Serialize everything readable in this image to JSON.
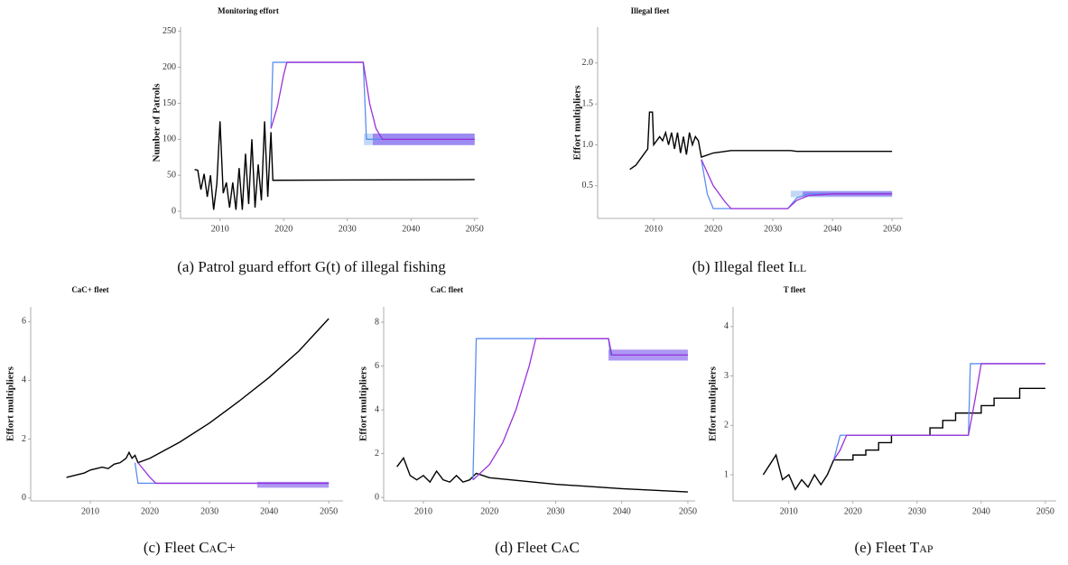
{
  "chart_data": [
    {
      "type": "line",
      "title": "Monitoring effort",
      "ylabel": "Number of Patrols",
      "caption": "(a) Patrol guard effort G(t) of illegal fishing",
      "xlim": [
        2003.8,
        2050.6
      ],
      "ylim": [
        -10,
        256
      ],
      "xticks": [
        2010,
        2020,
        2030,
        2040,
        2050
      ],
      "yticks": [
        0,
        50,
        100,
        150,
        200,
        250
      ],
      "bands": [
        {
          "color": "#a9c8f2",
          "x": [
            2032.6,
            2050
          ],
          "lower": [
            92,
            92
          ],
          "upper": [
            108,
            108
          ]
        },
        {
          "color": "#8b6cf0",
          "x": [
            2034,
            2050
          ],
          "lower": [
            92,
            92
          ],
          "upper": [
            108,
            108
          ]
        }
      ],
      "series": [
        {
          "color": "#000000",
          "x": [
            2006,
            2006.5,
            2007,
            2007.5,
            2008,
            2008.5,
            2009,
            2009.5,
            2010,
            2010.5,
            2011,
            2011.5,
            2012,
            2012.5,
            2013,
            2013.5,
            2014,
            2014.5,
            2015,
            2015.5,
            2016,
            2016.5,
            2017,
            2017.5,
            2018,
            2018.3,
            2050
          ],
          "values": [
            58,
            57,
            30,
            52,
            20,
            50,
            2,
            38,
            125,
            25,
            40,
            5,
            40,
            2,
            60,
            2,
            80,
            10,
            100,
            5,
            65,
            15,
            125,
            20,
            110,
            43,
            44
          ]
        },
        {
          "color": "#5b8def",
          "x": [
            2018,
            2018.3,
            2032.5,
            2033,
            2050
          ],
          "values": [
            115,
            207,
            207,
            100,
            100
          ]
        },
        {
          "color": "#9b30d9",
          "x": [
            2018,
            2019,
            2020,
            2020.5,
            2032.5,
            2033.5,
            2034.5,
            2035.5,
            2050
          ],
          "values": [
            115,
            145,
            190,
            207,
            207,
            150,
            115,
            100,
            100
          ]
        }
      ]
    },
    {
      "type": "line",
      "title": "Illegal fleet",
      "ylabel": "Effort multipliers",
      "caption": "(b) Illegal fleet",
      "caption_sc": "Ill",
      "xlim": [
        2000.6,
        2051.8
      ],
      "ylim": [
        0.1,
        2.44
      ],
      "xticks": [
        2010,
        2020,
        2030,
        2040,
        2050
      ],
      "yticks": [
        0.5,
        {
          "value": 1,
          "label": "1.0"
        },
        1.5,
        {
          "value": 2,
          "label": "2.0"
        }
      ],
      "bands": [
        {
          "color": "#a9c8f2",
          "x": [
            2033,
            2050
          ],
          "lower": [
            0.36,
            0.36
          ],
          "upper": [
            0.44,
            0.44
          ]
        },
        {
          "color": "#8b6cf0",
          "x": [
            2035,
            2050
          ],
          "lower": [
            0.37,
            0.37
          ],
          "upper": [
            0.43,
            0.43
          ]
        }
      ],
      "series": [
        {
          "color": "#000000",
          "x": [
            2006,
            2007,
            2008,
            2009,
            2009.3,
            2009.8,
            2010,
            2011,
            2011.5,
            2012,
            2012.5,
            2013,
            2013.5,
            2014,
            2014.5,
            2015,
            2015.5,
            2016,
            2016.5,
            2017,
            2017.5,
            2018,
            2020,
            2023,
            2033,
            2034,
            2050
          ],
          "values": [
            0.7,
            0.75,
            0.85,
            0.95,
            1.4,
            1.4,
            1.0,
            1.1,
            1.05,
            1.15,
            1.0,
            1.15,
            0.95,
            1.15,
            0.9,
            1.1,
            0.88,
            1.15,
            1.0,
            1.1,
            1.05,
            0.85,
            0.9,
            0.93,
            0.93,
            0.92,
            0.92
          ]
        },
        {
          "color": "#5b8def",
          "x": [
            2018,
            2019,
            2020,
            2032.5,
            2034,
            2036,
            2050
          ],
          "values": [
            0.82,
            0.4,
            0.22,
            0.22,
            0.35,
            0.4,
            0.4
          ]
        },
        {
          "color": "#9b30d9",
          "x": [
            2018,
            2020,
            2022,
            2023,
            2032.5,
            2034,
            2036,
            2040,
            2050
          ],
          "values": [
            0.82,
            0.5,
            0.3,
            0.22,
            0.22,
            0.32,
            0.38,
            0.4,
            0.4
          ]
        }
      ]
    },
    {
      "type": "line",
      "title": "CaC+ fleet",
      "ylabel": "Effort multipliers",
      "caption": "(c) Fleet",
      "caption_sc": "CaC+",
      "xlim": [
        2000,
        2052.4
      ],
      "ylim": [
        -0.1,
        6.5
      ],
      "xticks": [
        2010,
        2020,
        2030,
        2040,
        2050
      ],
      "yticks": [
        0,
        2,
        4,
        6
      ],
      "bands": [
        {
          "color": "#8b6cf0",
          "x": [
            2038,
            2050
          ],
          "lower": [
            0.35,
            0.35
          ],
          "upper": [
            0.55,
            0.55
          ]
        }
      ],
      "series": [
        {
          "color": "#000000",
          "x": [
            2006,
            2007,
            2008,
            2009,
            2010,
            2011,
            2012,
            2013,
            2014,
            2015,
            2016,
            2016.5,
            2017,
            2017.5,
            2018,
            2020,
            2025,
            2030,
            2035,
            2040,
            2045,
            2050
          ],
          "values": [
            0.7,
            0.75,
            0.8,
            0.85,
            0.95,
            1.0,
            1.05,
            1.0,
            1.15,
            1.2,
            1.35,
            1.55,
            1.35,
            1.45,
            1.2,
            1.35,
            1.9,
            2.55,
            3.3,
            4.1,
            5.0,
            6.1
          ]
        },
        {
          "color": "#5b8def",
          "x": [
            2017.5,
            2018,
            2050
          ],
          "values": [
            1.2,
            0.5,
            0.5
          ]
        },
        {
          "color": "#9b30d9",
          "x": [
            2018,
            2020,
            2021,
            2050
          ],
          "values": [
            1.2,
            0.7,
            0.5,
            0.5
          ]
        }
      ]
    },
    {
      "type": "line",
      "title": "CaC fleet",
      "ylabel": "Effort multipliers",
      "caption": "(d) Fleet",
      "caption_sc": "CaC",
      "xlim": [
        2004,
        2051.1
      ],
      "ylim": [
        -0.16,
        8.7
      ],
      "xticks": [
        2010,
        2020,
        2030,
        2040,
        2050
      ],
      "yticks": [
        0,
        2,
        4,
        6,
        8
      ],
      "bands": [
        {
          "color": "#8b6cf0",
          "x": [
            2038,
            2050
          ],
          "lower": [
            6.25,
            6.25
          ],
          "upper": [
            6.75,
            6.75
          ]
        }
      ],
      "series": [
        {
          "color": "#000000",
          "x": [
            2006,
            2007,
            2008,
            2009,
            2010,
            2011,
            2012,
            2013,
            2014,
            2015,
            2016,
            2017,
            2018,
            2020,
            2030,
            2040,
            2050
          ],
          "values": [
            1.4,
            1.8,
            1.0,
            0.8,
            1.0,
            0.7,
            1.2,
            0.8,
            0.7,
            1.0,
            0.7,
            0.8,
            1.1,
            0.9,
            0.6,
            0.4,
            0.25
          ]
        },
        {
          "color": "#5b8def",
          "x": [
            2017.5,
            2018,
            2038,
            2038.3,
            2050
          ],
          "values": [
            0.8,
            7.25,
            7.25,
            6.5,
            6.5
          ]
        },
        {
          "color": "#9b30d9",
          "x": [
            2017.5,
            2020,
            2022,
            2024,
            2026,
            2027,
            2038,
            2038.5,
            2050
          ],
          "values": [
            0.8,
            1.5,
            2.5,
            4.0,
            6.0,
            7.25,
            7.25,
            6.5,
            6.5
          ]
        }
      ]
    },
    {
      "type": "line",
      "title": "T fleet",
      "ylabel": "Effort multipliers",
      "caption": "(e) Fleet",
      "caption_sc": "Tap",
      "xlim": [
        2001.3,
        2051.7
      ],
      "ylim": [
        0.47,
        4.4
      ],
      "xticks": [
        2010,
        2020,
        2030,
        2040,
        2050
      ],
      "yticks": [
        1,
        2,
        3,
        4
      ],
      "bands": [],
      "series": [
        {
          "color": "#000000",
          "x": [
            2006,
            2007,
            2008,
            2009,
            2010,
            2011,
            2012,
            2013,
            2014,
            2015,
            2016,
            2017,
            2020,
            2020,
            2022,
            2022,
            2024,
            2024,
            2026,
            2026,
            2032,
            2032,
            2034,
            2034,
            2036,
            2036,
            2040,
            2040,
            2042,
            2042,
            2046,
            2046,
            2050
          ],
          "values": [
            1.0,
            1.2,
            1.4,
            0.9,
            1.0,
            0.7,
            0.9,
            0.75,
            1.0,
            0.8,
            1.0,
            1.3,
            1.3,
            1.4,
            1.4,
            1.5,
            1.5,
            1.65,
            1.65,
            1.8,
            1.8,
            1.95,
            1.95,
            2.1,
            2.1,
            2.25,
            2.25,
            2.4,
            2.4,
            2.55,
            2.55,
            2.75,
            2.75
          ]
        },
        {
          "color": "#5b8def",
          "x": [
            2017,
            2018,
            2038,
            2038.3,
            2050
          ],
          "values": [
            1.3,
            1.8,
            1.8,
            3.25,
            3.25
          ]
        },
        {
          "color": "#9b30d9",
          "x": [
            2017,
            2018,
            2019,
            2038,
            2039,
            2040,
            2050
          ],
          "values": [
            1.3,
            1.5,
            1.8,
            1.8,
            2.5,
            3.25,
            3.25
          ]
        }
      ]
    }
  ]
}
